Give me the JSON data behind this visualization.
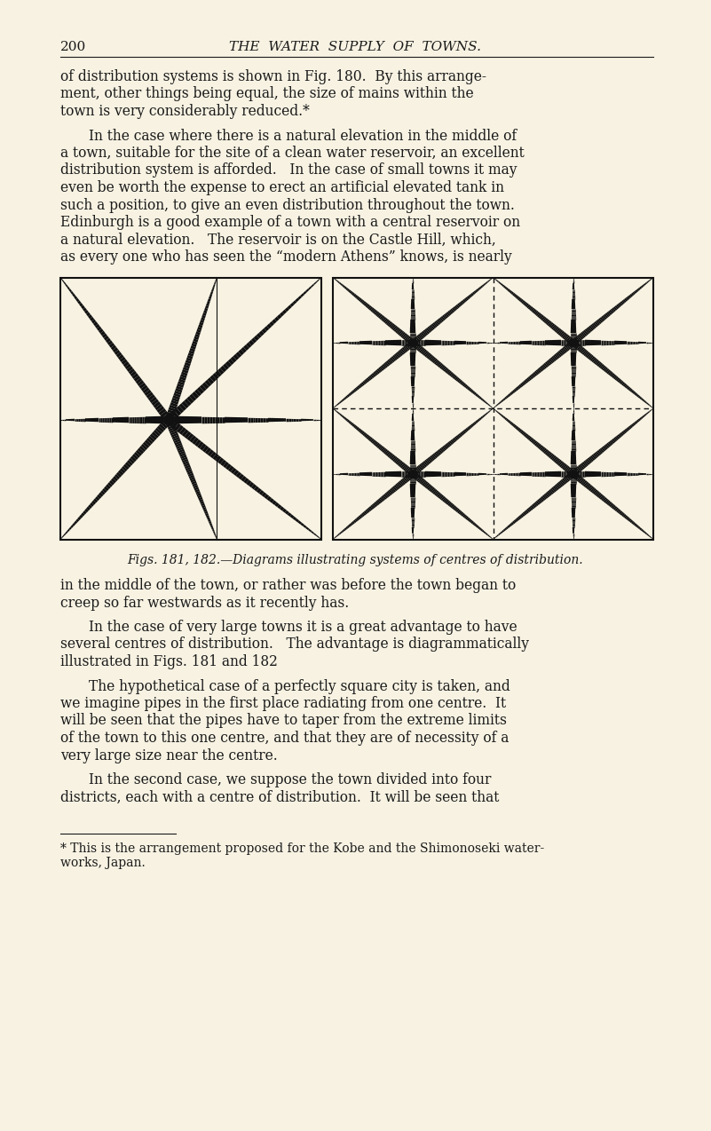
{
  "bg_color": "#f7f2e2",
  "text_color": "#1a1a1a",
  "line_color": "#111111",
  "page_number": "200",
  "header_title": "THE  WATER  SUPPLY  OF  TOWNS.",
  "para1": "of distribution systems is shown in Fig. 180.  By this arrange-\nment, other things being equal, the size of mains within the\ntown is very considerably reduced.*",
  "para2_indent": "In the case where there is a natural elevation in the middle of\na town, suitable for the site of a clean water reservoir, an excellent\ndistribution system is afforded.   In the case of small towns it may\neven be worth the expense to erect an artificial elevated tank in\nsuch a position, to give an even distribution throughout the town.\nEdinburgh is a good example of a town with a central reservoir on\na natural elevation.   The reservoir is on the Castle Hill, which,\nas every one who has seen the “modern Athens” knows, is nearly",
  "fig_caption": "Figs. 181, 182.—Diagrams illustrating systems of centres of distribution.",
  "para3": "in the middle of the town, or rather was before the town began to\ncreep so far westwards as it recently has.",
  "para4_indent": "In the case of very large towns it is a great advantage to have\nseveral centres of distribution.   The advantage is diagrammatically\nillustrated in Figs. 181 and 182",
  "para5_indent": "The hypothetical case of a perfectly square city is taken, and\nwe imagine pipes in the first place radiating from one centre.  It\nwill be seen that the pipes have to taper from the extreme limits\nof the town to this one centre, and that they are of necessity of a\nvery large size near the centre.",
  "para6_indent": "In the second case, we suppose the town divided into four\ndistricts, each with a centre of distribution.  It will be seen that",
  "footnote_line1": "* This is the arrangement proposed for the Kobe and the Shimonoseki water-",
  "footnote_line2": "works, Japan."
}
